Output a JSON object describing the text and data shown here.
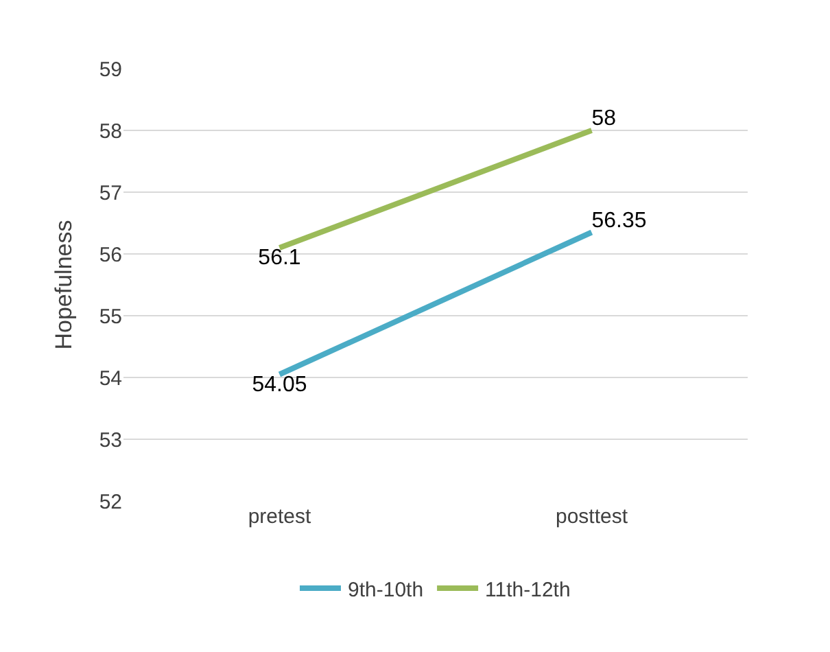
{
  "chart_data": {
    "type": "line",
    "ylabel": "Hopefulness",
    "categories": [
      "pretest",
      "posttest"
    ],
    "series": [
      {
        "name": "9th-10th",
        "color": "#4bacc6",
        "values": [
          54.05,
          56.35
        ]
      },
      {
        "name": "11th-12th",
        "color": "#9bbb59",
        "values": [
          56.1,
          58
        ]
      }
    ],
    "ylim": [
      52,
      59
    ],
    "yticks": [
      52,
      53,
      54,
      55,
      56,
      57,
      58,
      59
    ],
    "grid": "y",
    "legend": "bottom",
    "data_labels": true,
    "marker": "none"
  }
}
